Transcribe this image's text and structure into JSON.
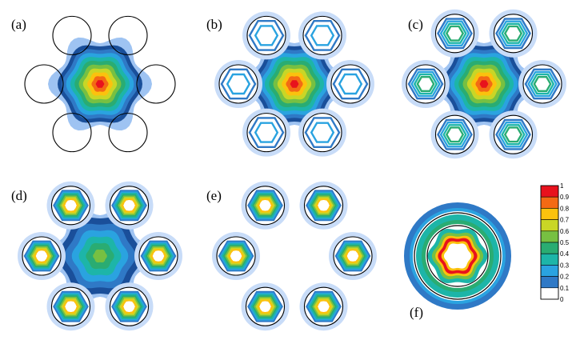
{
  "panels": [
    {
      "label": "(a)",
      "center_intensity": 1.0,
      "satellite_levels": [],
      "satellite_outline": true
    },
    {
      "label": "(b)",
      "center_intensity": 1.0,
      "satellite_levels": [
        0.2,
        0.3
      ],
      "satellite_outline": true
    },
    {
      "label": "(c)",
      "center_intensity": 1.0,
      "satellite_levels": [
        0.2,
        0.3,
        0.4,
        0.5
      ],
      "satellite_outline": true
    },
    {
      "label": "(d)",
      "center_intensity": 0.6,
      "satellite_levels": [
        0.2,
        0.3,
        0.4,
        0.5,
        0.6,
        0.7,
        0.8
      ],
      "satellite_outline": true
    },
    {
      "label": "(e)",
      "center_intensity": 0.0,
      "satellite_levels": [
        0.2,
        0.3,
        0.4,
        0.5,
        0.6,
        0.7,
        0.8
      ],
      "satellite_outline": true
    },
    {
      "label": "(f)",
      "single_fiber": true
    }
  ],
  "colorbar": {
    "ticks": [
      "1",
      "0.9",
      "0.8",
      "0.7",
      "0.6",
      "0.5",
      "0.4",
      "0.3",
      "0.2",
      "0.1",
      "0"
    ],
    "colors": [
      "#e8121d",
      "#f36a14",
      "#fbc20e",
      "#c9d626",
      "#77c042",
      "#2aac72",
      "#1db5a8",
      "#2aa3e0",
      "#2f79c6",
      "#1a4f9a",
      "#ffffff"
    ]
  },
  "colors": {
    "halo": "#9ec3f2",
    "halo_light": "#c8dcf8",
    "outline": "#000000"
  }
}
